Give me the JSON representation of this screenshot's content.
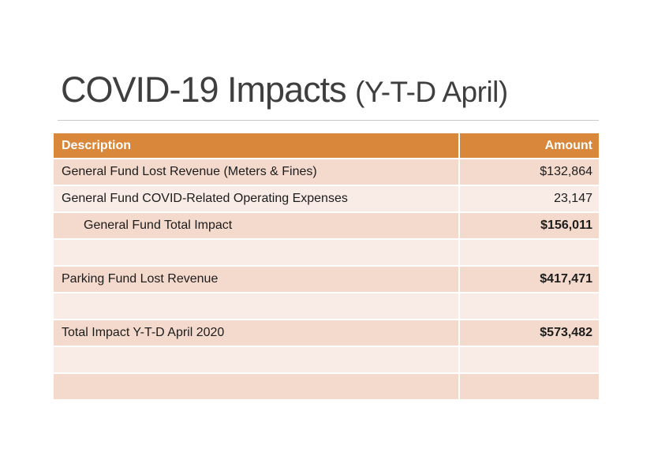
{
  "slide": {
    "title_main": "COVID-19 Impacts ",
    "title_suffix": "(Y-T-D April)"
  },
  "colors": {
    "header_bg": "#D8873B",
    "header_text": "#FFFFFF",
    "band_dark": "#F4DACD",
    "band_light": "#F9ECE6",
    "title_text": "#3F3F3F",
    "body_text": "#1C1C1C",
    "rule": "#C9C9C9"
  },
  "table": {
    "columns": [
      {
        "label": "Description",
        "align": "left"
      },
      {
        "label": "Amount",
        "align": "right"
      }
    ],
    "rows": [
      {
        "description": "General Fund Lost Revenue (Meters & Fines)",
        "amount": "$132,864",
        "band": "dark",
        "bold_amount": false,
        "indent": false
      },
      {
        "description": "General Fund COVID-Related Operating Expenses",
        "amount": "23,147",
        "band": "light",
        "bold_amount": false,
        "indent": false
      },
      {
        "description": "General Fund Total Impact",
        "amount": "$156,011",
        "band": "dark",
        "bold_amount": true,
        "indent": true
      },
      {
        "description": "",
        "amount": "",
        "band": "light",
        "bold_amount": false,
        "indent": false
      },
      {
        "description": "Parking Fund Lost Revenue",
        "amount": "$417,471",
        "band": "dark",
        "bold_amount": true,
        "indent": false
      },
      {
        "description": "",
        "amount": "",
        "band": "light",
        "bold_amount": false,
        "indent": false
      },
      {
        "description": "Total Impact Y-T-D April 2020",
        "amount": "$573,482",
        "band": "dark",
        "bold_amount": true,
        "indent": false
      },
      {
        "description": "",
        "amount": "",
        "band": "light",
        "bold_amount": false,
        "indent": false
      },
      {
        "description": "",
        "amount": "",
        "band": "dark",
        "bold_amount": false,
        "indent": false
      }
    ]
  }
}
